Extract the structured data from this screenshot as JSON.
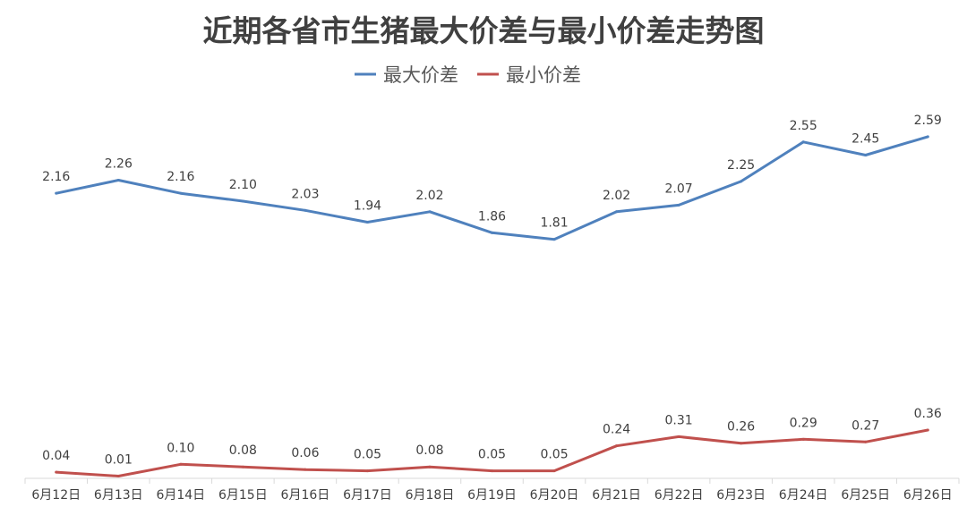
{
  "chart_data": {
    "type": "line",
    "title": "近期各省市生猪最大价差与最小价差走势图",
    "categories": [
      "6月12日",
      "6月13日",
      "6月14日",
      "6月15日",
      "6月16日",
      "6月17日",
      "6月18日",
      "6月19日",
      "6月20日",
      "6月21日",
      "6月22日",
      "6月23日",
      "6月24日",
      "6月25日",
      "6月26日"
    ],
    "series": [
      {
        "name": "最大价差",
        "color": "#4f81bd",
        "values": [
          2.16,
          2.26,
          2.16,
          2.1,
          2.03,
          1.94,
          2.02,
          1.86,
          1.81,
          2.02,
          2.07,
          2.25,
          2.55,
          2.45,
          2.59
        ]
      },
      {
        "name": "最小价差",
        "color": "#c0504d",
        "values": [
          0.04,
          0.01,
          0.1,
          0.08,
          0.06,
          0.05,
          0.08,
          0.05,
          0.05,
          0.24,
          0.31,
          0.26,
          0.29,
          0.27,
          0.36
        ]
      }
    ],
    "ylim": [
      0,
      2.8
    ],
    "grid": false,
    "legend": "top-center",
    "data_labels": true
  }
}
